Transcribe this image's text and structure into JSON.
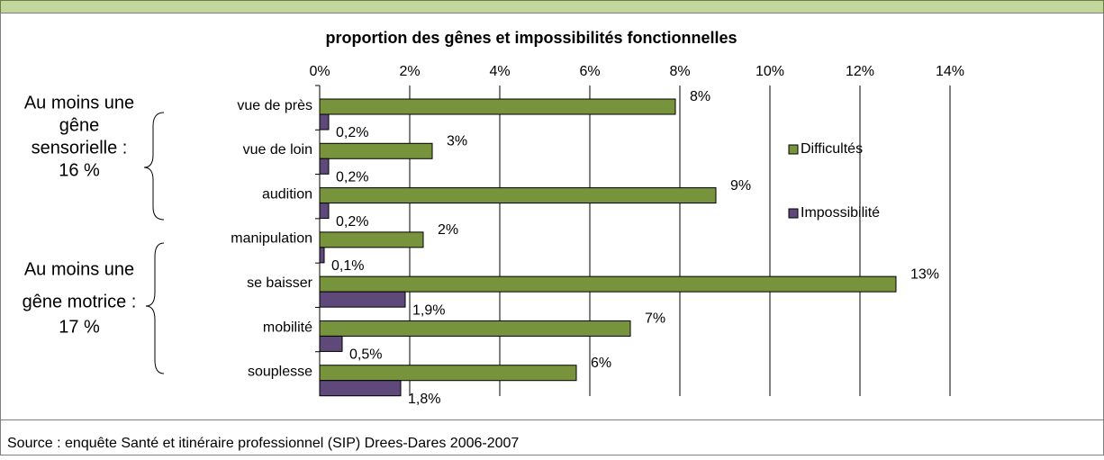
{
  "chart_data": {
    "type": "bar",
    "orientation": "horizontal",
    "title": "proportion des gênes et impossibilités fonctionnelles",
    "categories": [
      "vue de près",
      "vue de loin",
      "audition",
      "manipulation",
      "se baisser",
      "mobilité",
      "souplesse"
    ],
    "series": [
      {
        "name": "Difficultés",
        "color": "#77933c",
        "values": [
          7.9,
          2.5,
          8.8,
          2.3,
          12.8,
          6.9,
          5.7
        ],
        "value_labels": [
          "8%",
          "3%",
          "9%",
          "2%",
          "13%",
          "7%",
          "6%"
        ]
      },
      {
        "name": "Impossibilité",
        "color": "#5f497a",
        "values": [
          0.2,
          0.2,
          0.2,
          0.1,
          1.9,
          0.5,
          1.8
        ],
        "value_labels": [
          "0,2%",
          "0,2%",
          "0,2%",
          "0,1%",
          "1,9%",
          "0,5%",
          "1,8%"
        ]
      }
    ],
    "xlim": [
      0,
      14
    ],
    "xticks": [
      {
        "value": 0,
        "label": "0%"
      },
      {
        "value": 2,
        "label": "2%"
      },
      {
        "value": 4,
        "label": "4%"
      },
      {
        "value": 6,
        "label": "6%"
      },
      {
        "value": 8,
        "label": "8%"
      },
      {
        "value": 10,
        "label": "10%"
      },
      {
        "value": 12,
        "label": "12%"
      },
      {
        "value": 14,
        "label": "14%"
      }
    ],
    "grid": true,
    "legend": "right",
    "annotations": [
      {
        "lines": [
          "Au moins une",
          "gêne",
          "sensorielle :",
          "16 %"
        ]
      },
      {
        "lines": [
          "Au moins une",
          "gêne motrice :",
          "17 %"
        ]
      }
    ],
    "source": "Source : enquête Santé et itinéraire professionnel (SIP) Drees-Dares 2006-2007"
  }
}
